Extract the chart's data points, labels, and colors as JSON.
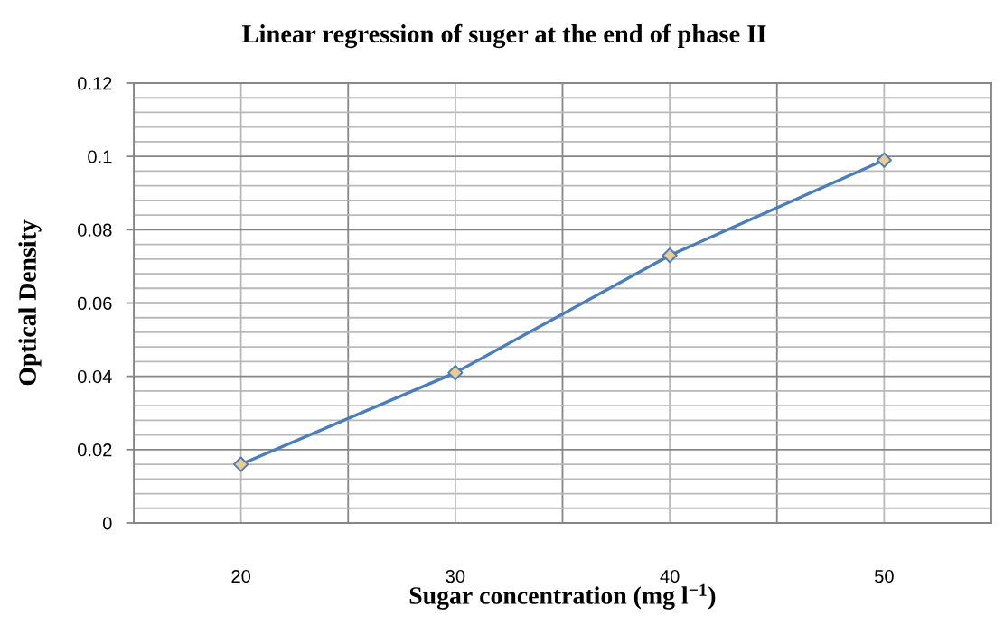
{
  "chart_data": {
    "type": "line",
    "title": "Linear regression of suger at the end of phase II",
    "xlabel": "Sugar concentration (mg l$^{−1}$)",
    "ylabel": "Optical Density",
    "categories": [
      "20",
      "30",
      "40",
      "50"
    ],
    "series": [
      {
        "color": "#4a7ebb",
        "colors": [
          "#ebcb91",
          "#ebcb91",
          "#ebcb91",
          "#ebcb91"
        ],
        "values": [
          0.016,
          0.041,
          0.073,
          0.099
        ]
      }
    ],
    "ylim": [
      0,
      0.12
    ],
    "yticks": [
      0,
      0.02,
      0.04,
      0.06,
      0.08,
      0.1,
      0.12
    ],
    "grid": true,
    "marker": "diamond",
    "line_style": "solid"
  }
}
